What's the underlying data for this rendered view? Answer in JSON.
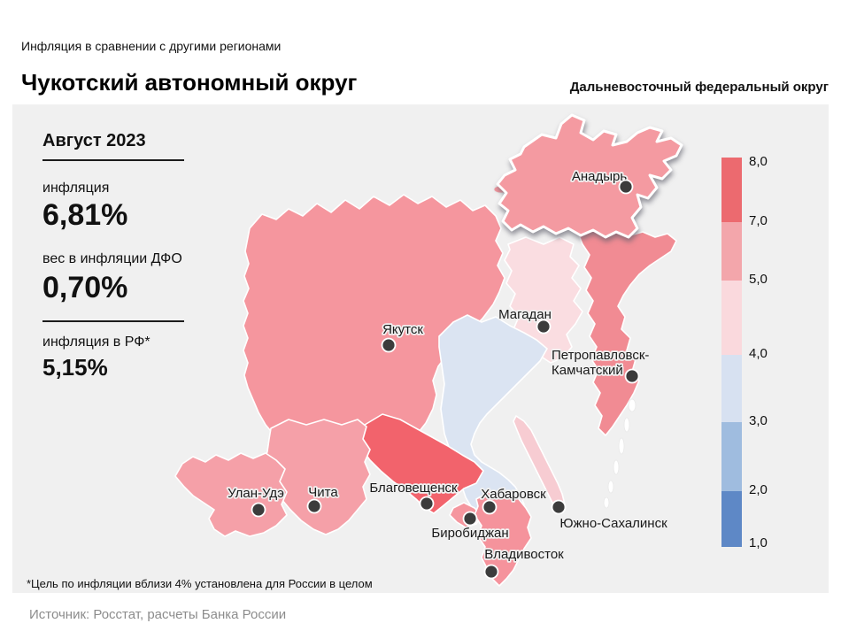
{
  "page": {
    "subtitle": "Инфляция  в сравнении  с другими  регионами",
    "title": "Чукотский автономный округ",
    "district_title": "Дальневосточный федеральный округ",
    "footnote": "*Цель по инфляции вблизи 4% установлена для России в целом",
    "source": "Источник: Росстат, расчеты  Банка России"
  },
  "stats": {
    "period": "Август 2023",
    "inflation_label": "инфляция",
    "inflation_value": "6,81%",
    "weight_label": "вес в инфляции  ДФО",
    "weight_value": "0,70%",
    "rf_label": "инфляция  в РФ*",
    "rf_value": "5,15%"
  },
  "legend": {
    "ticks": [
      "8,0",
      "7,0",
      "5,0",
      "4,0",
      "3,0",
      "2,0",
      "1,0"
    ],
    "segment_colors": [
      "#ec6a6f",
      "#f3a6ab",
      "#fad9dd",
      "#d7e1f1",
      "#9fbcdf",
      "#5e88c6"
    ]
  },
  "map": {
    "background": "#f0f0f0",
    "marker_color": "#3c3c3c",
    "regions": [
      {
        "id": "yakutia",
        "color": "#f5969e"
      },
      {
        "id": "chukotka",
        "color": "#f49aa1",
        "highlighted": true
      },
      {
        "id": "magadan",
        "color": "#fadde1"
      },
      {
        "id": "kamchatka",
        "color": "#f18b93"
      },
      {
        "id": "khabarovsk",
        "color": "#dbe4f2"
      },
      {
        "id": "amur",
        "color": "#f2636c"
      },
      {
        "id": "zabaykalsky",
        "color": "#f5a0a8"
      },
      {
        "id": "buryatia",
        "color": "#f5a0a8"
      },
      {
        "id": "jewish_ao",
        "color": "#f5969e"
      },
      {
        "id": "primorye",
        "color": "#f5939c"
      },
      {
        "id": "sakhalin",
        "color": "#f7ccd2"
      }
    ],
    "cities": [
      {
        "label": "Анадырь"
      },
      {
        "label": "Якутск"
      },
      {
        "label": "Магадан"
      },
      {
        "label": "Петропавловск-",
        "label2": "Камчатский"
      },
      {
        "label": "Улан-Удэ"
      },
      {
        "label": "Чита"
      },
      {
        "label": "Благовещенск"
      },
      {
        "label": "Хабаровск"
      },
      {
        "label": "Биробиджан"
      },
      {
        "label": "Южно-Сахалинск"
      },
      {
        "label": "Владивосток"
      }
    ]
  },
  "chart_data": {
    "type": "heatmap",
    "subtype": "choropleth-map",
    "title": "Инфляция в сравнении с другими регионами",
    "region_in_focus": "Чукотский автономный округ",
    "district": "Дальневосточный федеральный округ",
    "period": "Август 2023",
    "focus_metrics": {
      "inflation": "6,81%",
      "weight_in_dfo_inflation": "0,70%",
      "inflation_rf": "5,15%"
    },
    "legend_scale": {
      "orientation": "vertical",
      "position": "right",
      "tick_labels": [
        "8,0",
        "7,0",
        "5,0",
        "4,0",
        "3,0",
        "2,0",
        "1,0"
      ],
      "band_colors_top_to_bottom": [
        "#ec6a6f",
        "#f3a6ab",
        "#fad9dd",
        "#d7e1f1",
        "#9fbcdf",
        "#5e88c6"
      ]
    },
    "regions": [
      {
        "city": "Анадырь",
        "value_band": "5,0–7,0",
        "color": "#f49aa1",
        "highlighted": true
      },
      {
        "city": "Якутск",
        "value_band": "5,0–7,0",
        "color": "#f5969e"
      },
      {
        "city": "Магадан",
        "value_band": "4,0–5,0",
        "color": "#fadde1"
      },
      {
        "city": "Петропавловск-Камчатский",
        "value_band": "5,0–7,0",
        "color": "#f18b93"
      },
      {
        "city": "Хабаровск",
        "value_band": "3,0–4,0",
        "color": "#dbe4f2"
      },
      {
        "city": "Благовещенск",
        "value_band": "7,0–8,0",
        "color": "#f2636c"
      },
      {
        "city": "Чита",
        "value_band": "5,0–7,0",
        "color": "#f5a0a8"
      },
      {
        "city": "Улан-Удэ",
        "value_band": "5,0–7,0",
        "color": "#f5a0a8"
      },
      {
        "city": "Биробиджан",
        "value_band": "5,0–7,0",
        "color": "#f5969e"
      },
      {
        "city": "Владивосток",
        "value_band": "5,0–7,0",
        "color": "#f5939c"
      },
      {
        "city": "Южно-Сахалинск",
        "value_band": "4,0–5,0",
        "color": "#f7ccd2"
      }
    ],
    "footnote": "*Цель по инфляции вблизи 4% установлена для России в целом",
    "source": "Источник: Росстат, расчеты Банка России"
  }
}
